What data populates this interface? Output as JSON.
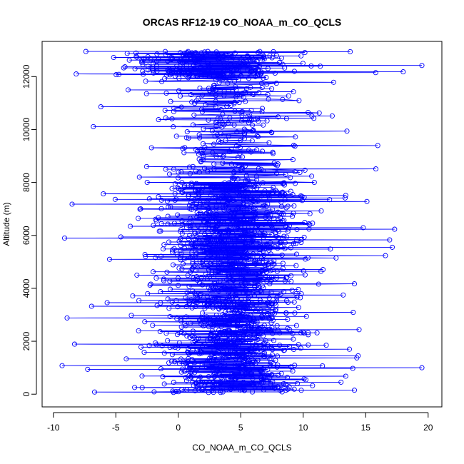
{
  "chart_data": {
    "type": "scatter",
    "title": "ORCAS RF12-19 CO_NOAA_m_CO_QCLS",
    "xlabel": "CO_NOAA_m_CO_QCLS",
    "ylabel": "Altitude (m)",
    "xlim": [
      -10.9,
      21.1
    ],
    "ylim": [
      -480,
      13330
    ],
    "xticks": [
      "-10",
      "-5",
      "0",
      "5",
      "10",
      "15",
      "20"
    ],
    "yticks": [
      "0",
      "2000",
      "4000",
      "6000",
      "8000",
      "10000",
      "12000"
    ],
    "xtick_values": [
      -10,
      -5,
      0,
      5,
      10,
      15,
      20
    ],
    "ytick_values": [
      0,
      2000,
      4000,
      6000,
      8000,
      10000,
      12000
    ],
    "grid": false,
    "legend": "none",
    "connect_points": true,
    "series_color": "#0000ff",
    "marker": "open-circle",
    "summary": {
      "x_center": 4.2,
      "x_spread_core": 3.0,
      "x_min": -9.3,
      "x_max": 19.5,
      "y_min": 60,
      "y_max": 12950
    },
    "notable_points": [
      {
        "x": 19.5,
        "y": 12420
      },
      {
        "x": 18.0,
        "y": 12180
      },
      {
        "x": 15.8,
        "y": 12150
      },
      {
        "x": 15.1,
        "y": 7280
      },
      {
        "x": 14.8,
        "y": 6290
      },
      {
        "x": 14.1,
        "y": 4170
      },
      {
        "x": 14.0,
        "y": 3090
      },
      {
        "x": 14.1,
        "y": 150
      },
      {
        "x": 13.7,
        "y": 1700
      },
      {
        "x": 13.4,
        "y": 7510
      },
      {
        "x": 13.5,
        "y": 9940
      },
      {
        "x": -9.3,
        "y": 1080
      },
      {
        "x": -9.1,
        "y": 5900
      },
      {
        "x": -8.9,
        "y": 2880
      },
      {
        "x": -8.5,
        "y": 7180
      },
      {
        "x": -8.3,
        "y": 1890
      },
      {
        "x": -7.4,
        "y": 12950
      },
      {
        "x": -6.8,
        "y": 10110
      },
      {
        "x": -6.7,
        "y": 80
      },
      {
        "x": -6.2,
        "y": 10860
      },
      {
        "x": -6.0,
        "y": 7570
      }
    ]
  }
}
